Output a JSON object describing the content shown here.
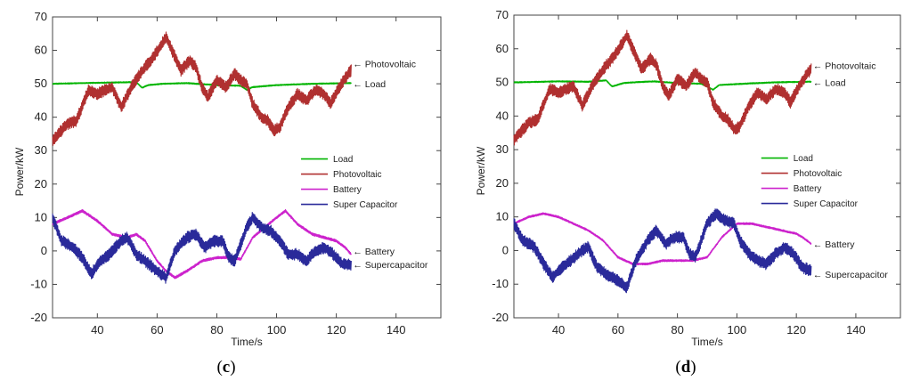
{
  "chart_data": [
    {
      "type": "line",
      "panel_label": "c",
      "xlabel": "Time/s",
      "ylabel": "Power/kW",
      "xlim": [
        25,
        155
      ],
      "ylim": [
        -20,
        70
      ],
      "xticks": [
        40,
        60,
        80,
        100,
        120,
        140
      ],
      "yticks": [
        -20,
        -10,
        0,
        10,
        20,
        30,
        40,
        50,
        60,
        70
      ],
      "legend_placement": "center-right",
      "series": [
        {
          "name": "Load",
          "color": "#00b400",
          "ripple": 0.2,
          "points": [
            [
              25,
              50
            ],
            [
              40,
              50.3
            ],
            [
              53,
              50.5
            ],
            [
              55,
              48.8
            ],
            [
              57,
              49.6
            ],
            [
              62,
              50
            ],
            [
              70,
              50.2
            ],
            [
              80,
              49.6
            ],
            [
              88,
              49.4
            ],
            [
              90,
              48.2
            ],
            [
              92,
              49
            ],
            [
              100,
              49.6
            ],
            [
              112,
              50
            ],
            [
              125,
              50.2
            ]
          ]
        },
        {
          "name": "Photovoltaic",
          "color": "#b03030",
          "ripple": 1.8,
          "points": [
            [
              25,
              33
            ],
            [
              30,
              38
            ],
            [
              33,
              39
            ],
            [
              37,
              48
            ],
            [
              40,
              47
            ],
            [
              45,
              49
            ],
            [
              48,
              43
            ],
            [
              52,
              50
            ],
            [
              56,
              55
            ],
            [
              58,
              57
            ],
            [
              61,
              61
            ],
            [
              63,
              64
            ],
            [
              66,
              58
            ],
            [
              68,
              54
            ],
            [
              71,
              57
            ],
            [
              73,
              55
            ],
            [
              75,
              49
            ],
            [
              77,
              46
            ],
            [
              80,
              51
            ],
            [
              83,
              49
            ],
            [
              86,
              53
            ],
            [
              88,
              51
            ],
            [
              90,
              50
            ],
            [
              92,
              44
            ],
            [
              95,
              40
            ],
            [
              97,
              39
            ],
            [
              99,
              36
            ],
            [
              101,
              37
            ],
            [
              104,
              43
            ],
            [
              107,
              47
            ],
            [
              110,
              45
            ],
            [
              113,
              48
            ],
            [
              116,
              47
            ],
            [
              118,
              44
            ],
            [
              121,
              49
            ],
            [
              124,
              53
            ],
            [
              125,
              54
            ]
          ]
        },
        {
          "name": "Battery",
          "color": "#cc22cc",
          "ripple": 0.4,
          "points": [
            [
              25,
              8
            ],
            [
              30,
              10
            ],
            [
              35,
              12
            ],
            [
              40,
              9
            ],
            [
              45,
              5
            ],
            [
              50,
              4
            ],
            [
              53,
              5
            ],
            [
              56,
              3
            ],
            [
              60,
              -3
            ],
            [
              63,
              -6
            ],
            [
              66,
              -8
            ],
            [
              70,
              -6
            ],
            [
              75,
              -3
            ],
            [
              80,
              -2
            ],
            [
              85,
              -2
            ],
            [
              88,
              -2.5
            ],
            [
              92,
              4
            ],
            [
              96,
              7
            ],
            [
              100,
              10
            ],
            [
              103,
              12
            ],
            [
              107,
              8
            ],
            [
              112,
              5
            ],
            [
              116,
              4
            ],
            [
              120,
              3
            ],
            [
              123,
              1
            ],
            [
              125,
              -1
            ]
          ]
        },
        {
          "name": "Super Capacitor",
          "color": "#2a2a9a",
          "ripple": 1.8,
          "points": [
            [
              25,
              10
            ],
            [
              28,
              3
            ],
            [
              32,
              1
            ],
            [
              35,
              -2
            ],
            [
              38,
              -7
            ],
            [
              40,
              -4
            ],
            [
              44,
              -1
            ],
            [
              48,
              3
            ],
            [
              50,
              4
            ],
            [
              53,
              -1
            ],
            [
              56,
              -3
            ],
            [
              60,
              -6
            ],
            [
              63,
              -8
            ],
            [
              66,
              0
            ],
            [
              70,
              4
            ],
            [
              73,
              5
            ],
            [
              76,
              1
            ],
            [
              79,
              3
            ],
            [
              82,
              3
            ],
            [
              84,
              -2
            ],
            [
              86,
              -3
            ],
            [
              88,
              2
            ],
            [
              90,
              7
            ],
            [
              92,
              10
            ],
            [
              95,
              7
            ],
            [
              98,
              6
            ],
            [
              101,
              3
            ],
            [
              104,
              -1
            ],
            [
              107,
              -1
            ],
            [
              110,
              -3
            ],
            [
              113,
              0
            ],
            [
              116,
              1
            ],
            [
              119,
              -1
            ],
            [
              122,
              -4
            ],
            [
              125,
              -4
            ]
          ]
        }
      ],
      "annotations": [
        {
          "text": "← Photovoltaic",
          "x": 125,
          "y": 56
        },
        {
          "text": "← Load",
          "x": 125,
          "y": 50
        },
        {
          "text": "← Battery",
          "x": 125,
          "y": 0
        },
        {
          "text": "← Supercapacitor",
          "x": 125,
          "y": -4
        }
      ]
    },
    {
      "type": "line",
      "panel_label": "d",
      "xlabel": "Time/s",
      "ylabel": "Power/kW",
      "xlim": [
        25,
        155
      ],
      "ylim": [
        -20,
        70
      ],
      "xticks": [
        40,
        60,
        80,
        100,
        120,
        140
      ],
      "yticks": [
        -20,
        -10,
        0,
        10,
        20,
        30,
        40,
        50,
        60,
        70
      ],
      "legend_placement": "center-right",
      "series": [
        {
          "name": "Load",
          "color": "#00b400",
          "ripple": 0.2,
          "points": [
            [
              25,
              50
            ],
            [
              40,
              50.3
            ],
            [
              50,
              50.2
            ],
            [
              56,
              50.6
            ],
            [
              58,
              48.8
            ],
            [
              62,
              49.8
            ],
            [
              65,
              50
            ],
            [
              72,
              50.3
            ],
            [
              80,
              49.8
            ],
            [
              88,
              49.6
            ],
            [
              90,
              48.8
            ],
            [
              92,
              47.8
            ],
            [
              94,
              49.2
            ],
            [
              100,
              49.5
            ],
            [
              112,
              50
            ],
            [
              125,
              50.2
            ]
          ]
        },
        {
          "name": "Photovoltaic",
          "color": "#b03030",
          "ripple": 1.8,
          "points": [
            [
              25,
              33
            ],
            [
              30,
              38
            ],
            [
              33,
              39
            ],
            [
              37,
              48
            ],
            [
              40,
              47
            ],
            [
              45,
              49
            ],
            [
              48,
              43
            ],
            [
              52,
              50
            ],
            [
              56,
              55
            ],
            [
              58,
              57
            ],
            [
              61,
              61
            ],
            [
              63,
              64
            ],
            [
              66,
              58
            ],
            [
              68,
              54
            ],
            [
              71,
              57
            ],
            [
              73,
              55
            ],
            [
              75,
              49
            ],
            [
              77,
              46
            ],
            [
              80,
              51
            ],
            [
              83,
              49
            ],
            [
              86,
              53
            ],
            [
              88,
              51
            ],
            [
              90,
              50
            ],
            [
              92,
              44
            ],
            [
              95,
              40
            ],
            [
              97,
              39
            ],
            [
              99,
              36
            ],
            [
              101,
              37
            ],
            [
              104,
              43
            ],
            [
              107,
              47
            ],
            [
              110,
              45
            ],
            [
              113,
              48
            ],
            [
              116,
              47
            ],
            [
              118,
              44
            ],
            [
              121,
              49
            ],
            [
              124,
              53
            ],
            [
              125,
              54
            ]
          ]
        },
        {
          "name": "Battery",
          "color": "#cc22cc",
          "ripple": 0.3,
          "points": [
            [
              25,
              8
            ],
            [
              30,
              10
            ],
            [
              35,
              11
            ],
            [
              40,
              10
            ],
            [
              45,
              8
            ],
            [
              50,
              6
            ],
            [
              55,
              3
            ],
            [
              60,
              -2
            ],
            [
              65,
              -4
            ],
            [
              70,
              -4
            ],
            [
              75,
              -3
            ],
            [
              80,
              -3
            ],
            [
              85,
              -3
            ],
            [
              90,
              -2
            ],
            [
              95,
              4
            ],
            [
              100,
              8
            ],
            [
              105,
              8
            ],
            [
              110,
              7
            ],
            [
              115,
              6
            ],
            [
              120,
              5
            ],
            [
              122,
              4
            ],
            [
              125,
              2
            ]
          ]
        },
        {
          "name": "Super Capacitor",
          "color": "#2a2a9a",
          "ripple": 1.8,
          "points": [
            [
              25,
              8
            ],
            [
              28,
              3
            ],
            [
              32,
              1
            ],
            [
              35,
              -4
            ],
            [
              38,
              -8
            ],
            [
              40,
              -6
            ],
            [
              44,
              -3
            ],
            [
              48,
              0
            ],
            [
              50,
              1
            ],
            [
              53,
              -5
            ],
            [
              56,
              -7
            ],
            [
              60,
              -9
            ],
            [
              63,
              -11
            ],
            [
              66,
              -3
            ],
            [
              70,
              3
            ],
            [
              73,
              6
            ],
            [
              76,
              2
            ],
            [
              79,
              4
            ],
            [
              82,
              4
            ],
            [
              84,
              -1
            ],
            [
              86,
              -2
            ],
            [
              88,
              3
            ],
            [
              90,
              8
            ],
            [
              93,
              11
            ],
            [
              96,
              9
            ],
            [
              99,
              8
            ],
            [
              101,
              3
            ],
            [
              104,
              -1
            ],
            [
              107,
              -3
            ],
            [
              110,
              -4
            ],
            [
              113,
              -1
            ],
            [
              116,
              1
            ],
            [
              119,
              -1
            ],
            [
              122,
              -5
            ],
            [
              125,
              -6
            ]
          ]
        }
      ],
      "annotations": [
        {
          "text": "← Photovoltaic",
          "x": 125,
          "y": 55
        },
        {
          "text": "← Load",
          "x": 125,
          "y": 50
        },
        {
          "text": "← Battery",
          "x": 125,
          "y": 2
        },
        {
          "text": "← Supercapacitor",
          "x": 125,
          "y": -7
        }
      ]
    }
  ]
}
